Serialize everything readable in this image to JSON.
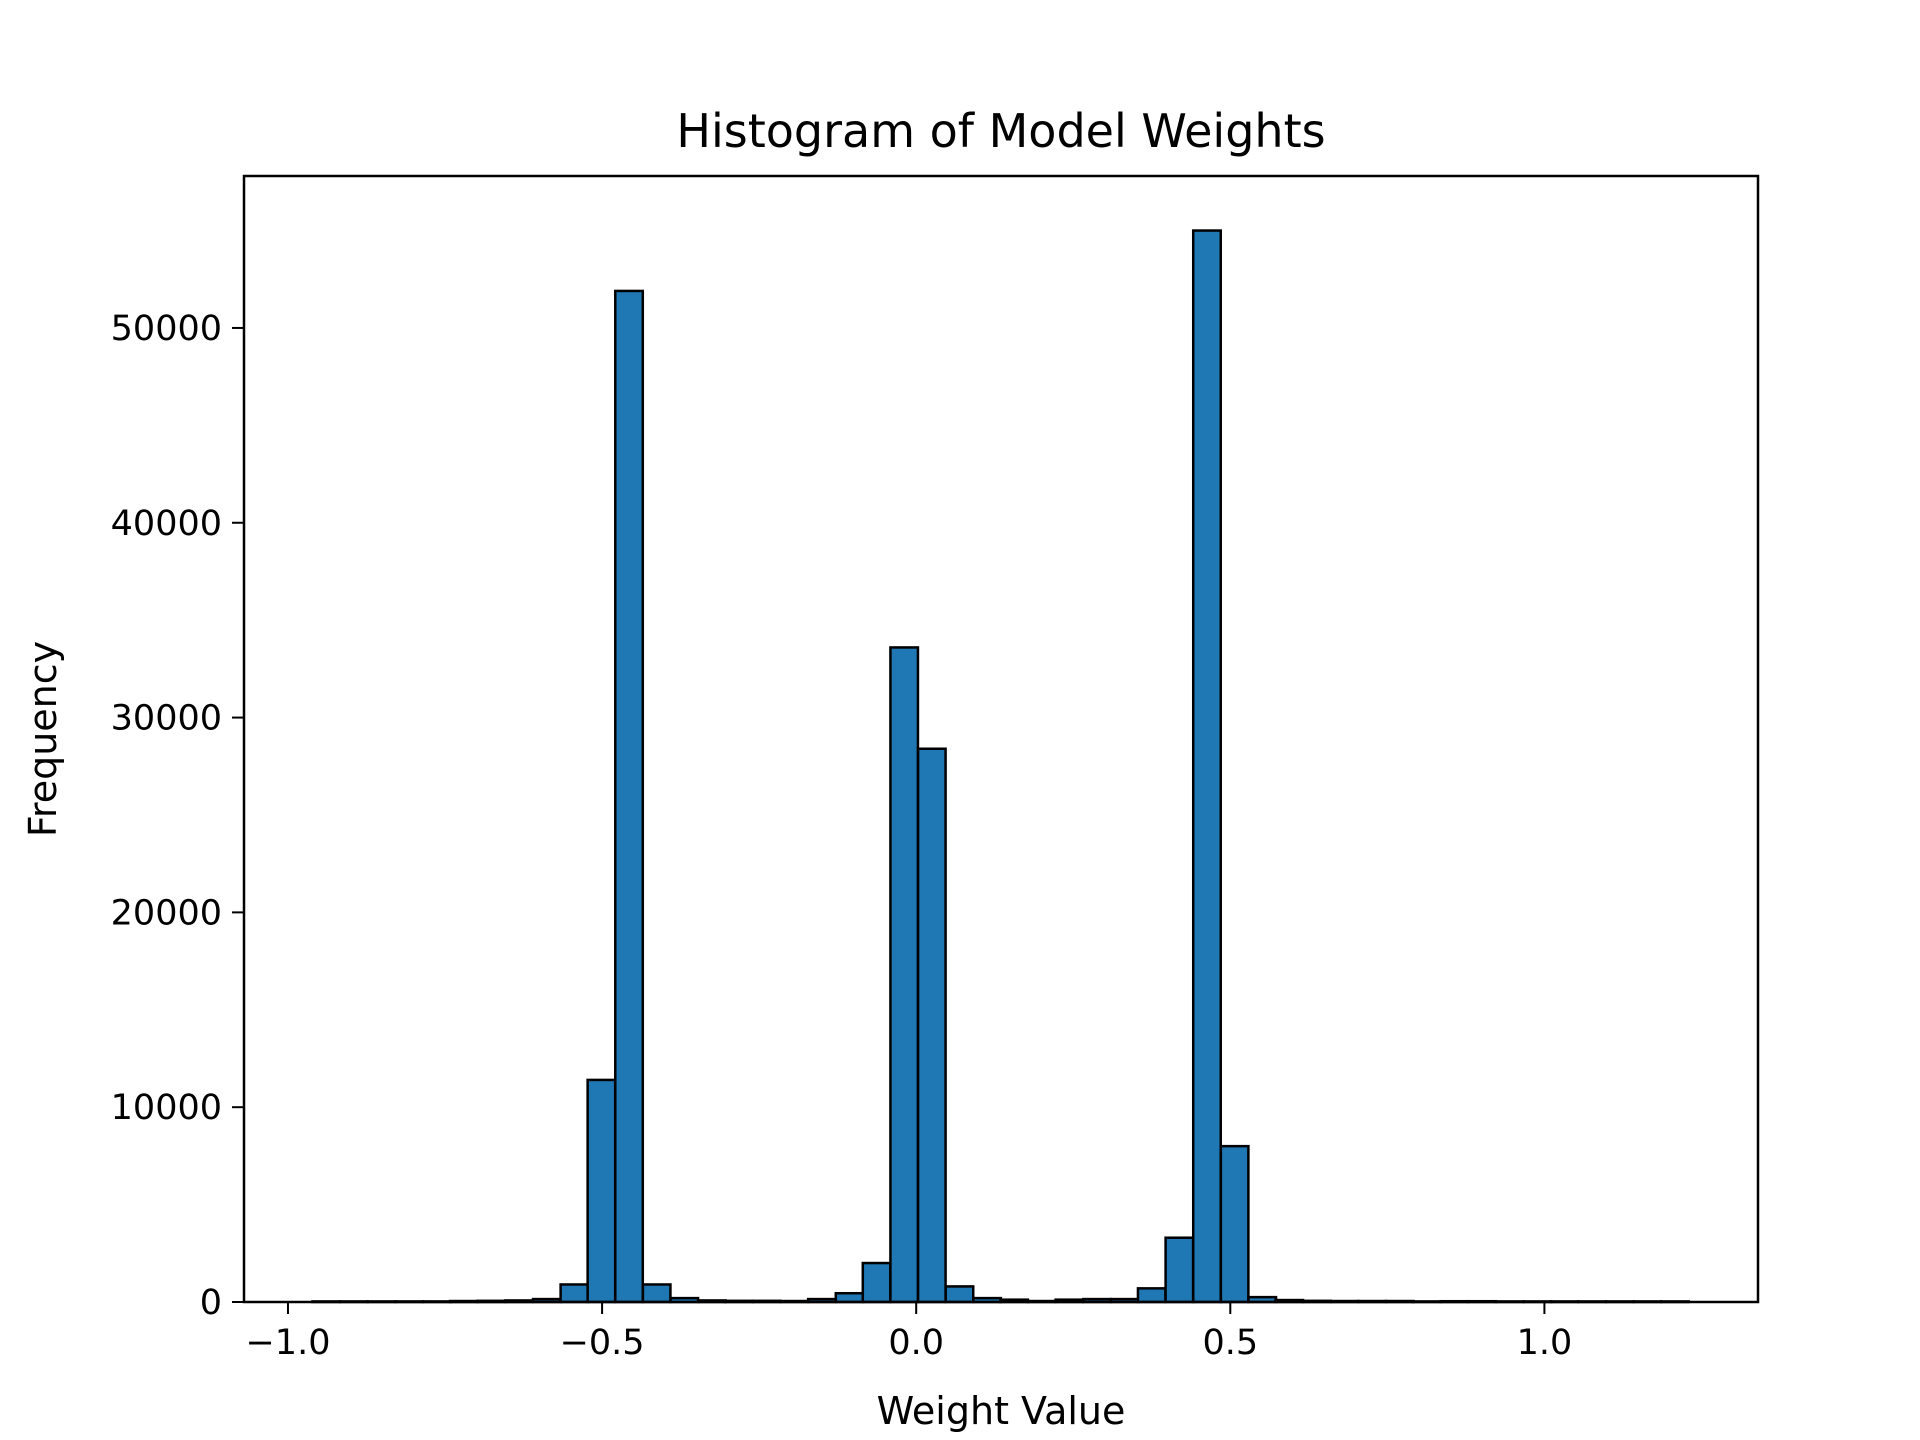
{
  "chart_data": {
    "type": "bar",
    "title": "Histogram of Model Weights",
    "xlabel": "Weight Value",
    "ylabel": "Frequency",
    "xlim": [
      -1.07,
      1.34
    ],
    "ylim": [
      0,
      57800
    ],
    "xticks": [
      -1.0,
      -0.5,
      0.0,
      0.5,
      1.0
    ],
    "xtick_labels": [
      "−1.0",
      "−0.5",
      "0.0",
      "0.5",
      "1.0"
    ],
    "yticks": [
      0,
      10000,
      20000,
      30000,
      40000,
      50000
    ],
    "ytick_labels": [
      "0",
      "10000",
      "20000",
      "30000",
      "40000",
      "50000"
    ],
    "grid": false,
    "bar_color": "#1f77b4",
    "edge_color": "#000000",
    "bin_width": 0.0438,
    "bins": [
      {
        "x": -0.961,
        "value": 30
      },
      {
        "x": -0.917,
        "value": 30
      },
      {
        "x": -0.873,
        "value": 30
      },
      {
        "x": -0.829,
        "value": 30
      },
      {
        "x": -0.785,
        "value": 30
      },
      {
        "x": -0.742,
        "value": 50
      },
      {
        "x": -0.698,
        "value": 60
      },
      {
        "x": -0.654,
        "value": 80
      },
      {
        "x": -0.61,
        "value": 150
      },
      {
        "x": -0.566,
        "value": 900
      },
      {
        "x": -0.523,
        "value": 11400
      },
      {
        "x": -0.479,
        "value": 51900
      },
      {
        "x": -0.435,
        "value": 900
      },
      {
        "x": -0.391,
        "value": 200
      },
      {
        "x": -0.347,
        "value": 80
      },
      {
        "x": -0.304,
        "value": 60
      },
      {
        "x": -0.26,
        "value": 60
      },
      {
        "x": -0.216,
        "value": 50
      },
      {
        "x": -0.172,
        "value": 150
      },
      {
        "x": -0.128,
        "value": 450
      },
      {
        "x": -0.085,
        "value": 2000
      },
      {
        "x": -0.041,
        "value": 33600
      },
      {
        "x": 0.003,
        "value": 28400
      },
      {
        "x": 0.047,
        "value": 800
      },
      {
        "x": 0.091,
        "value": 200
      },
      {
        "x": 0.134,
        "value": 120
      },
      {
        "x": 0.178,
        "value": 50
      },
      {
        "x": 0.222,
        "value": 120
      },
      {
        "x": 0.266,
        "value": 150
      },
      {
        "x": 0.31,
        "value": 150
      },
      {
        "x": 0.353,
        "value": 700
      },
      {
        "x": 0.397,
        "value": 3300
      },
      {
        "x": 0.441,
        "value": 55000
      },
      {
        "x": 0.485,
        "value": 8000
      },
      {
        "x": 0.529,
        "value": 250
      },
      {
        "x": 0.572,
        "value": 100
      },
      {
        "x": 0.616,
        "value": 60
      },
      {
        "x": 0.66,
        "value": 50
      },
      {
        "x": 0.704,
        "value": 50
      },
      {
        "x": 0.748,
        "value": 50
      },
      {
        "x": 0.791,
        "value": 30
      },
      {
        "x": 0.835,
        "value": 40
      },
      {
        "x": 0.879,
        "value": 40
      },
      {
        "x": 0.923,
        "value": 30
      },
      {
        "x": 0.967,
        "value": 30
      },
      {
        "x": 1.01,
        "value": 30
      },
      {
        "x": 1.054,
        "value": 30
      },
      {
        "x": 1.098,
        "value": 30
      },
      {
        "x": 1.142,
        "value": 30
      },
      {
        "x": 1.186,
        "value": 30
      }
    ]
  }
}
